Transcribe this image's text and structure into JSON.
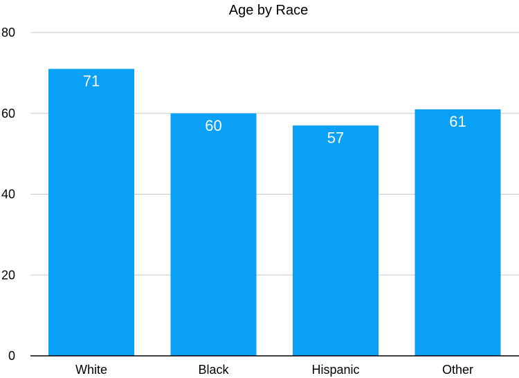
{
  "chart_data": {
    "type": "bar",
    "title": "Age by Race",
    "xlabel": "",
    "ylabel": "",
    "categories": [
      "White",
      "Black",
      "Hispanic",
      "Other"
    ],
    "values": [
      71,
      60,
      57,
      61
    ],
    "value_labels": [
      "71",
      "60",
      "57",
      "61"
    ],
    "ylim": [
      0,
      80
    ],
    "yticks": [
      0,
      20,
      40,
      60,
      80
    ],
    "ytick_labels": [
      "0",
      "20",
      "40",
      "60",
      "80"
    ],
    "grid": true,
    "legend": "none",
    "colors": {
      "bar": "#0aa0f6",
      "grid": "#c8c8c8",
      "axis": "#000000",
      "value_label": "#ffffff"
    }
  }
}
